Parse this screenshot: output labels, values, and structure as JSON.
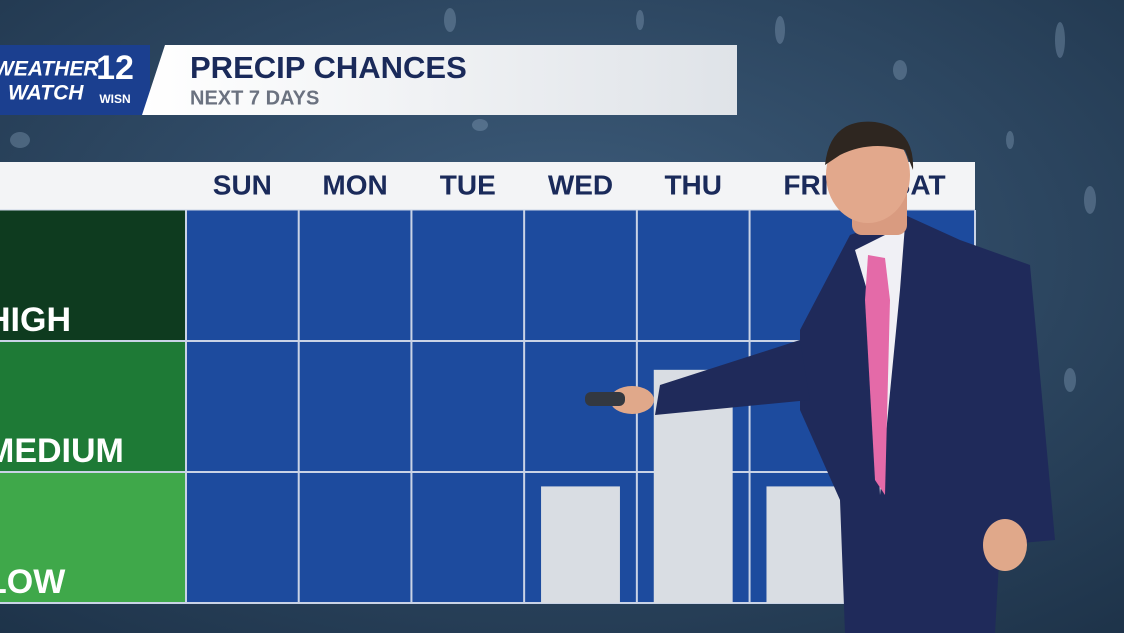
{
  "logo": {
    "line1": "WEATHER",
    "line2": "WATCH",
    "channel": "12",
    "station": "WISN"
  },
  "chart_data": {
    "type": "bar",
    "title": "PRECIP CHANCES",
    "subtitle": "NEXT 7 DAYS",
    "categories": [
      "SUN",
      "MON",
      "TUE",
      "WED",
      "THU",
      "FRI",
      "SAT"
    ],
    "values": [
      0,
      0,
      0,
      0.89,
      1.78,
      0.89,
      null
    ],
    "color": "#d9dde3",
    "ylim": [
      0,
      3
    ],
    "yticks": [
      {
        "value": 0,
        "label": "LOW"
      },
      {
        "value": 1,
        "label": "MEDIUM"
      },
      {
        "value": 2,
        "label": "HIGH"
      }
    ],
    "band_colors": [
      "#3fa84a",
      "#1e7a36",
      "#0e3b1f"
    ],
    "grid": true
  }
}
